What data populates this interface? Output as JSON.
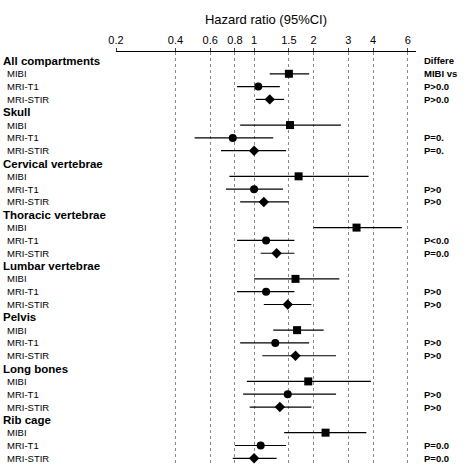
{
  "chart_data": {
    "type": "forest",
    "x_label": "Hazard ratio (95%CI)",
    "log": "x",
    "grid": true,
    "xlim": [
      0.2,
      6.6
    ],
    "xticks": [
      0.2,
      0.4,
      0.6,
      0.8,
      1,
      1.5,
      2,
      3,
      4,
      6
    ],
    "reference_line": 1,
    "right_header": [
      "Differe",
      "MIBI vs"
    ],
    "categories": [
      "All compartments",
      "Skull",
      "Cervical vertebrae",
      "Thoracic vertebrae",
      "Lumbar vertebrae",
      "Pelvis",
      "Long bones",
      "Rib cage"
    ],
    "series": [
      {
        "name": "MIBI",
        "marker": "square",
        "color": "#000000",
        "values": [
          1.5,
          1.52,
          1.68,
          3.3,
          1.62,
          1.65,
          1.88,
          2.3
        ],
        "ci_low": [
          1.2,
          0.85,
          0.75,
          2.0,
          1.0,
          1.25,
          0.92,
          1.42
        ],
        "ci_high": [
          1.9,
          2.75,
          3.8,
          5.6,
          2.7,
          2.25,
          3.9,
          3.7
        ]
      },
      {
        "name": "MRI-T1",
        "marker": "circle",
        "color": "#000000",
        "values": [
          1.05,
          0.78,
          1.0,
          1.15,
          1.15,
          1.28,
          1.48,
          1.08
        ],
        "ci_low": [
          0.82,
          0.5,
          0.72,
          0.82,
          0.82,
          0.85,
          0.88,
          0.8
        ],
        "ci_high": [
          1.35,
          1.25,
          1.4,
          1.6,
          1.6,
          1.9,
          2.6,
          1.45
        ],
        "p_values": [
          "P>0.0",
          "P=0.",
          "P>0",
          "P<0.0",
          "P>0",
          "P>0",
          "P>0",
          "P=0.0"
        ]
      },
      {
        "name": "MRI-STIR",
        "marker": "diamond",
        "color": "#000000",
        "values": [
          1.2,
          1.0,
          1.12,
          1.3,
          1.48,
          1.62,
          1.35,
          1.0
        ],
        "ci_low": [
          1.02,
          0.68,
          0.85,
          1.08,
          1.12,
          1.1,
          0.95,
          0.78
        ],
        "ci_high": [
          1.42,
          1.45,
          1.5,
          1.6,
          1.95,
          2.6,
          1.95,
          1.3
        ],
        "p_values": [
          "P>0.0",
          "P=0.",
          "P>0",
          "P=0.0",
          "P>0",
          "P>0",
          "P>0",
          "P=0.0"
        ]
      }
    ]
  }
}
